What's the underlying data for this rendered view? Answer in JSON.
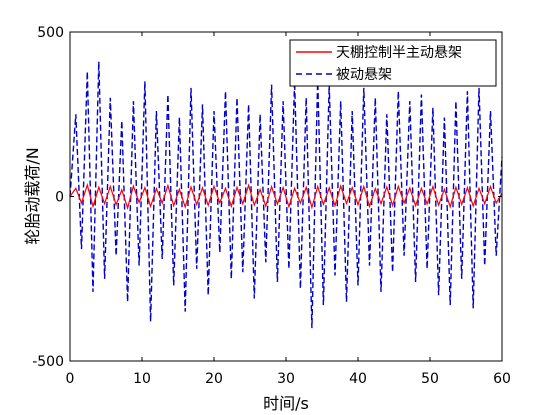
{
  "chart_data": {
    "type": "line",
    "xlabel": "时间/s",
    "ylabel": "轮胎动载荷/N",
    "xlim": [
      0,
      60
    ],
    "ylim": [
      -500,
      500
    ],
    "xticks": [
      0,
      10,
      20,
      30,
      40,
      50,
      60
    ],
    "yticks": [
      -500,
      0,
      500
    ],
    "xtick_labels": [
      "0",
      "10",
      "20",
      "30",
      "40",
      "50",
      "60"
    ],
    "ytick_labels": [
      "-500",
      "0",
      "500"
    ],
    "grid": false,
    "legend_position": "top-right",
    "series": [
      {
        "name": "被动悬架",
        "color": "#0000cc",
        "style": "dashed",
        "x": [
          0,
          0.8,
          1.6,
          2.4,
          3.2,
          4.0,
          4.8,
          5.6,
          6.4,
          7.2,
          8.0,
          8.8,
          9.6,
          10.4,
          11.2,
          12.0,
          12.8,
          13.6,
          14.4,
          15.2,
          16.0,
          16.8,
          17.6,
          18.4,
          19.2,
          20.0,
          20.8,
          21.6,
          22.4,
          23.2,
          24.0,
          24.8,
          25.6,
          26.4,
          27.2,
          28.0,
          28.8,
          29.6,
          30.4,
          31.2,
          32.0,
          32.8,
          33.6,
          34.4,
          35.2,
          36.0,
          36.8,
          37.6,
          38.4,
          39.2,
          40.0,
          40.8,
          41.6,
          42.4,
          43.2,
          44.0,
          44.8,
          45.6,
          46.4,
          47.2,
          48.0,
          48.8,
          49.6,
          50.4,
          51.2,
          52.0,
          52.8,
          53.6,
          54.4,
          55.2,
          56.0,
          56.8,
          57.6,
          58.4,
          59.2,
          60.0
        ],
        "y": [
          0,
          250,
          -160,
          380,
          -290,
          410,
          -250,
          300,
          -180,
          230,
          -320,
          290,
          -210,
          350,
          -380,
          260,
          -190,
          310,
          -270,
          240,
          -350,
          330,
          -220,
          280,
          -300,
          260,
          -170,
          320,
          -250,
          300,
          -230,
          280,
          -310,
          250,
          -200,
          340,
          -260,
          290,
          -220,
          350,
          -280,
          300,
          -400,
          360,
          -330,
          340,
          -240,
          290,
          -320,
          260,
          -270,
          330,
          -210,
          300,
          -290,
          250,
          -230,
          320,
          -180,
          290,
          -260,
          310,
          -220,
          270,
          -300,
          240,
          -330,
          290,
          -250,
          320,
          -340,
          330,
          -210,
          260,
          -180,
          120
        ]
      },
      {
        "name": "天棚控制半主动悬架",
        "color": "#ff0000",
        "style": "solid",
        "x": [
          0,
          0.8,
          1.6,
          2.4,
          3.2,
          4.0,
          4.8,
          5.6,
          6.4,
          7.2,
          8.0,
          8.8,
          9.6,
          10.4,
          11.2,
          12.0,
          12.8,
          13.6,
          14.4,
          15.2,
          16.0,
          16.8,
          17.6,
          18.4,
          19.2,
          20.0,
          20.8,
          21.6,
          22.4,
          23.2,
          24.0,
          24.8,
          25.6,
          26.4,
          27.2,
          28.0,
          28.8,
          29.6,
          30.4,
          31.2,
          32.0,
          32.8,
          33.6,
          34.4,
          35.2,
          36.0,
          36.8,
          37.6,
          38.4,
          39.2,
          40.0,
          40.8,
          41.6,
          42.4,
          43.2,
          44.0,
          44.8,
          45.6,
          46.4,
          47.2,
          48.0,
          48.8,
          49.6,
          50.4,
          51.2,
          52.0,
          52.8,
          53.6,
          54.4,
          55.2,
          56.0,
          56.8,
          57.6,
          58.4,
          59.2,
          60.0
        ],
        "y": [
          0,
          25,
          -20,
          35,
          -30,
          28,
          -22,
          30,
          -25,
          20,
          -35,
          32,
          -18,
          27,
          -30,
          24,
          -20,
          33,
          -28,
          22,
          -32,
          29,
          -24,
          26,
          -27,
          31,
          -19,
          25,
          -30,
          28,
          -22,
          34,
          -26,
          21,
          -29,
          30,
          -23,
          27,
          -31,
          25,
          -20,
          28,
          -33,
          30,
          -24,
          26,
          -28,
          32,
          -21,
          27,
          -25,
          30,
          -30,
          24,
          -22,
          29,
          -27,
          31,
          -20,
          26,
          -28,
          25,
          -23,
          30,
          -26,
          22,
          -31,
          28,
          -24,
          27,
          -29,
          25,
          -22,
          30,
          -20,
          10
        ]
      }
    ]
  }
}
